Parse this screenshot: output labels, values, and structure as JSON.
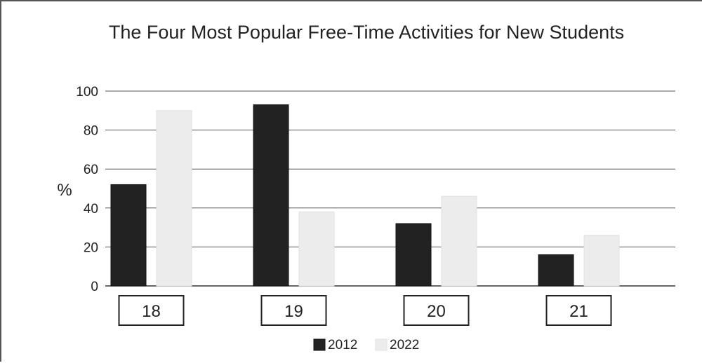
{
  "chart_data": {
    "type": "bar",
    "title": "The Four Most Popular Free-Time Activities for New Students",
    "ylabel": "%",
    "xlabel": "",
    "categories": [
      "18",
      "19",
      "20",
      "21"
    ],
    "series": [
      {
        "name": "2012",
        "values": [
          52,
          93,
          32,
          16
        ],
        "color": "#222222"
      },
      {
        "name": "2022",
        "values": [
          90,
          38,
          46,
          26
        ],
        "color": "#ececec"
      }
    ],
    "ylim": [
      0,
      100
    ],
    "yticks": [
      "0",
      "20",
      "40",
      "60",
      "80",
      "100"
    ],
    "grid": true,
    "legend": "bottom-center"
  }
}
